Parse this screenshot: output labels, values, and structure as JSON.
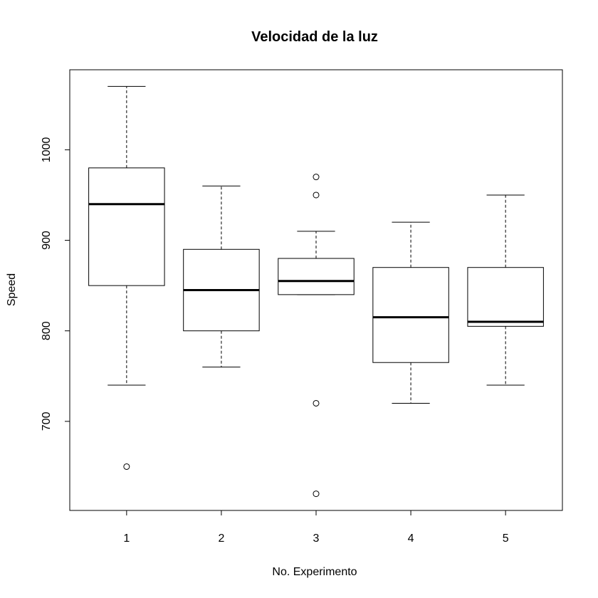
{
  "chart_data": {
    "type": "boxplot",
    "title": "Velocidad de la luz",
    "xlabel": "No. Experimento",
    "ylabel": "Speed",
    "categories": [
      "1",
      "2",
      "3",
      "4",
      "5"
    ],
    "ylim": [
      601.6,
      1088.4
    ],
    "yticks": [
      700,
      800,
      900,
      1000
    ],
    "grid": false,
    "colors": {
      "stroke": "#000000",
      "fill": "#ffffff",
      "background": "#ffffff"
    },
    "boxes": [
      {
        "category": "1",
        "whisker_low": 740,
        "q1": 850,
        "median": 940,
        "q3": 980,
        "whisker_high": 1070,
        "outliers": [
          650
        ]
      },
      {
        "category": "2",
        "whisker_low": 760,
        "q1": 800,
        "median": 845,
        "q3": 890,
        "whisker_high": 960,
        "outliers": []
      },
      {
        "category": "3",
        "whisker_low": 840,
        "q1": 840,
        "median": 855,
        "q3": 880,
        "whisker_high": 910,
        "outliers": [
          970,
          950,
          720,
          620
        ]
      },
      {
        "category": "4",
        "whisker_low": 720,
        "q1": 765,
        "median": 815,
        "q3": 870,
        "whisker_high": 920,
        "outliers": []
      },
      {
        "category": "5",
        "whisker_low": 740,
        "q1": 805,
        "median": 810,
        "q3": 870,
        "whisker_high": 950,
        "outliers": []
      }
    ]
  }
}
